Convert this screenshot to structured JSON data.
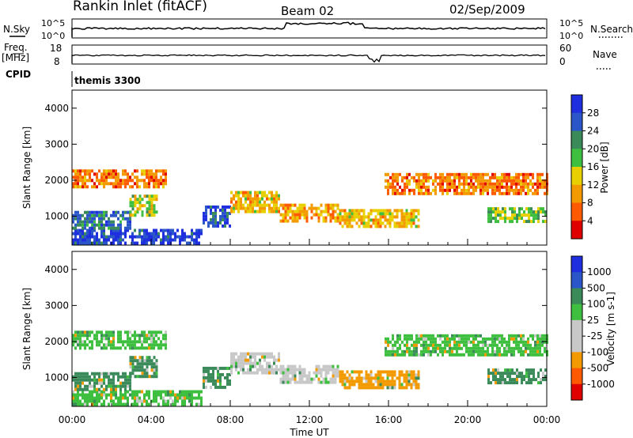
{
  "header": {
    "station": "Rankin Inlet (fitACF)",
    "beam": "Beam 02",
    "date": "02/Sep/2009"
  },
  "top_strip": {
    "nsky_label": "N.Sky",
    "nsky_ticks": [
      "10^5",
      "10^0"
    ],
    "nsearch_label": "N.Search",
    "nsearch_ticks": [
      "10^5",
      "10^0"
    ],
    "freq_label": "Freq.",
    "freq_unit": "[MHz]",
    "freq_ticks": [
      "18",
      "8"
    ],
    "nave_label": "Nave",
    "nave_ticks": [
      "60",
      "0"
    ],
    "cpid_label": "CPID",
    "cpid_value": "themis 3300"
  },
  "colors": {
    "power_scale": [
      "#1f2fe0",
      "#2a56c8",
      "#3a8a5a",
      "#3fbf3f",
      "#e8d000",
      "#f29a00",
      "#ff5a00",
      "#e00000"
    ],
    "velocity_scale": [
      "#1f2fe0",
      "#2a56c8",
      "#3a8a5a",
      "#3fbf3f",
      "#c8c8c8",
      "#c8c8c8",
      "#f29a00",
      "#ff5a00",
      "#e00000"
    ]
  },
  "chart_data": [
    {
      "type": "heatmap",
      "title": "",
      "xlabel": "",
      "ylabel": "Slant Range [km]",
      "xlim": [
        0,
        24
      ],
      "ylim": [
        200,
        4500
      ],
      "x_ticks": [
        "00:00",
        "04:00",
        "08:00",
        "12:00",
        "16:00",
        "20:00",
        "00:00"
      ],
      "y_ticks": [
        "1000",
        "2000",
        "3000",
        "4000"
      ],
      "colorbar_label": "Power [dB]",
      "colorbar_ticks": [
        "28",
        "24",
        "20",
        "16",
        "12",
        "8",
        "4"
      ],
      "regions": [
        {
          "t0": 0.0,
          "t1": 6.6,
          "r0": 250,
          "r1": 650,
          "level": 28
        },
        {
          "t0": 0.0,
          "t1": 2.9,
          "r0": 700,
          "r1": 1150,
          "level": 24
        },
        {
          "t0": 2.9,
          "t1": 4.3,
          "r0": 1000,
          "r1": 1600,
          "level": 16
        },
        {
          "t0": 6.6,
          "t1": 8.0,
          "r0": 700,
          "r1": 1300,
          "level": 26
        },
        {
          "t0": 8.0,
          "t1": 10.5,
          "r0": 1100,
          "r1": 1700,
          "level": 12
        },
        {
          "t0": 10.5,
          "t1": 13.5,
          "r0": 900,
          "r1": 1350,
          "level": 10
        },
        {
          "t0": 13.5,
          "t1": 17.5,
          "r0": 700,
          "r1": 1200,
          "level": 12
        },
        {
          "t0": 15.8,
          "t1": 24.0,
          "r0": 1650,
          "r1": 2200,
          "level": 8
        },
        {
          "t0": 21.0,
          "t1": 24.0,
          "r0": 850,
          "r1": 1250,
          "level": 18
        },
        {
          "t0": 0.0,
          "t1": 4.8,
          "r0": 1850,
          "r1": 2300,
          "level": 8
        }
      ]
    },
    {
      "type": "heatmap",
      "title": "",
      "xlabel": "Time UT",
      "ylabel": "Slant Range [km]",
      "xlim": [
        0,
        24
      ],
      "ylim": [
        200,
        4500
      ],
      "x_ticks": [
        "00:00",
        "04:00",
        "08:00",
        "12:00",
        "16:00",
        "20:00",
        "00:00"
      ],
      "y_ticks": [
        "1000",
        "2000",
        "3000",
        "4000"
      ],
      "colorbar_label": "Velocity [m s-1]",
      "colorbar_ticks": [
        "1000",
        "500",
        "100",
        "25",
        "-25",
        "-100",
        "-500",
        "-1000"
      ],
      "regions": [
        {
          "t0": 0.0,
          "t1": 6.6,
          "r0": 250,
          "r1": 650,
          "level": 25
        },
        {
          "t0": 0.0,
          "t1": 2.9,
          "r0": 700,
          "r1": 1150,
          "level": 100
        },
        {
          "t0": 2.9,
          "t1": 4.3,
          "r0": 1000,
          "r1": 1600,
          "level": 100
        },
        {
          "t0": 6.6,
          "t1": 8.0,
          "r0": 700,
          "r1": 1300,
          "level": 100
        },
        {
          "t0": 8.0,
          "t1": 10.5,
          "r0": 1100,
          "r1": 1700,
          "level": -100
        },
        {
          "t0": 10.5,
          "t1": 13.5,
          "r0": 900,
          "r1": 1350,
          "level": -100
        },
        {
          "t0": 13.5,
          "t1": 17.5,
          "r0": 700,
          "r1": 1200,
          "level": -500
        },
        {
          "t0": 15.8,
          "t1": 24.0,
          "r0": 1650,
          "r1": 2200,
          "level": 25
        },
        {
          "t0": 21.0,
          "t1": 24.0,
          "r0": 850,
          "r1": 1250,
          "level": 100
        },
        {
          "t0": 0.0,
          "t1": 4.8,
          "r0": 1850,
          "r1": 2300,
          "level": 25
        }
      ]
    }
  ]
}
